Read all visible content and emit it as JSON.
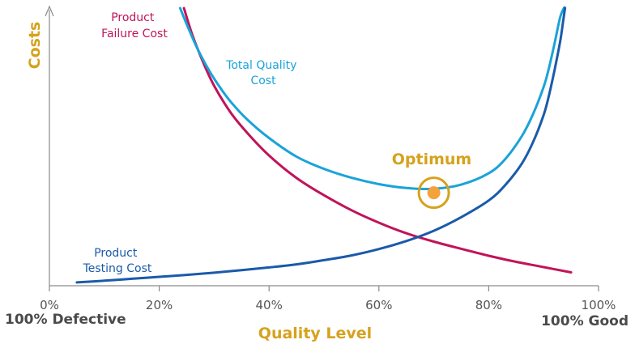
{
  "chart_data": {
    "type": "line",
    "title": "",
    "xlabel": "Quality Level",
    "ylabel": "Costs",
    "xlim": [
      0,
      100
    ],
    "ylim": [
      0,
      100
    ],
    "x_ticks": [
      "0%",
      "20%",
      "40%",
      "60%",
      "80%",
      "100%"
    ],
    "x_tick_values": [
      0,
      20,
      40,
      60,
      80,
      100
    ],
    "x_start_label": "100% Defective",
    "x_end_label": "100% Good",
    "grid": false,
    "series": [
      {
        "name": "Product Failure Cost",
        "label_lines": [
          "Product",
          "Failure Cost"
        ],
        "color": "#c0145a",
        "x": [
          24.5,
          26,
          28,
          30,
          33,
          36,
          40,
          45,
          50,
          55,
          60,
          65,
          70,
          75,
          80,
          85,
          90,
          95
        ],
        "y": [
          100,
          90.5,
          80.5,
          72,
          62.4,
          55.1,
          46.9,
          38.8,
          32.6,
          27.2,
          22.7,
          18.9,
          15.9,
          13.3,
          10.8,
          8.6,
          6.7,
          4.8
        ]
      },
      {
        "name": "Product Testing Cost",
        "label_lines": [
          "Product",
          "Testing Cost"
        ],
        "color": "#1a5aaa",
        "x": [
          5,
          10,
          15,
          20,
          25,
          30,
          35,
          40,
          45,
          50,
          55,
          60,
          65,
          70,
          75,
          80,
          83,
          86,
          88,
          90,
          91,
          92,
          93,
          93.5,
          93.9
        ],
        "y": [
          1.2,
          1.8,
          2.5,
          3.2,
          3.9,
          4.7,
          5.6,
          6.6,
          7.7,
          9.2,
          10.9,
          13.2,
          16.1,
          19.8,
          24.7,
          30.7,
          36.2,
          43.9,
          51.4,
          61.5,
          68.8,
          77.8,
          87.8,
          94.5,
          100
        ]
      },
      {
        "name": "Total Quality Cost",
        "label_lines": [
          "Total Quality",
          "Cost"
        ],
        "color": "#1aa3d9",
        "x": [
          23.8,
          25,
          27,
          29,
          31,
          33,
          36,
          40,
          45,
          50,
          55,
          60,
          65,
          70,
          75,
          80,
          83,
          86,
          88,
          90,
          91,
          92,
          93,
          93.7,
          93.9
        ],
        "y": [
          100,
          94.2,
          85.2,
          77.8,
          71.6,
          66.3,
          59.9,
          53.2,
          46.5,
          42.1,
          38.9,
          36.6,
          35.2,
          34.9,
          36.4,
          40.5,
          45.6,
          53.8,
          61.5,
          71.6,
          78.7,
          87.4,
          96.6,
          100,
          100
        ]
      }
    ],
    "annotations": [
      {
        "text": "Optimum",
        "x": 70,
        "y": 33.5,
        "color": "#d6a21c",
        "marker_color": "#f4a23a"
      }
    ],
    "colors": {
      "axis": "#8a8a8a",
      "axis_title": "#d6a21c",
      "tick_text": "#555555",
      "end_text": "#4a4a4a"
    }
  }
}
